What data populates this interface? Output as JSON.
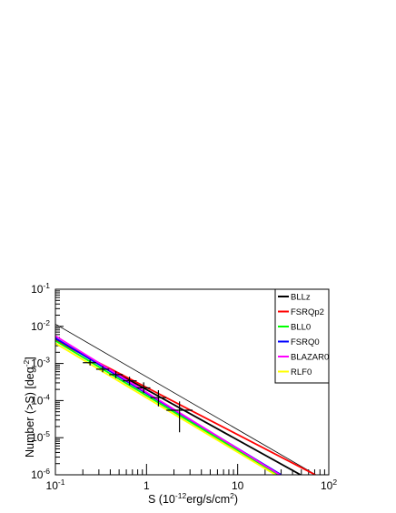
{
  "chart_data": {
    "type": "line",
    "xlabel_main": "S (10",
    "xlabel_sup": "-12",
    "xlabel_rest": "erg/s/cm",
    "xlabel_sup2": "2",
    "xlabel_end": ")",
    "ylabel_main": "Number (>S) [deg",
    "ylabel_sup": "-2",
    "ylabel_end": "]",
    "xscale": "log",
    "yscale": "log",
    "xlim": [
      0.1,
      100
    ],
    "ylim": [
      1e-06,
      0.1
    ],
    "x_major_ticks": [
      {
        "value": 0.1,
        "base": "10",
        "exp": "-1"
      },
      {
        "value": 1,
        "base": "1",
        "exp": ""
      },
      {
        "value": 10,
        "base": "10",
        "exp": ""
      },
      {
        "value": 100,
        "base": "10",
        "exp": "2"
      }
    ],
    "y_major_ticks": [
      {
        "value": 1e-06,
        "base": "10",
        "exp": "-6"
      },
      {
        "value": 1e-05,
        "base": "10",
        "exp": "-5"
      },
      {
        "value": 0.0001,
        "base": "10",
        "exp": "-4"
      },
      {
        "value": 0.001,
        "base": "10",
        "exp": "-3"
      },
      {
        "value": 0.01,
        "base": "10",
        "exp": "-2"
      },
      {
        "value": 0.1,
        "base": "10",
        "exp": "-1"
      }
    ],
    "legend_position": "top-right",
    "series": [
      {
        "name": "",
        "color": "#000000",
        "width": 0.8,
        "x": [
          0.1,
          72
        ],
        "y": [
          0.0115,
          1e-06
        ]
      },
      {
        "name": "BLLz",
        "color": "#000000",
        "width": 1.8,
        "x": [
          0.1,
          49
        ],
        "y": [
          0.0045,
          1e-06
        ]
      },
      {
        "name": "FSRQp2",
        "color": "#ff0000",
        "width": 1.8,
        "x": [
          0.1,
          71
        ],
        "y": [
          0.0042,
          1e-06
        ]
      },
      {
        "name": "BLL0",
        "color": "#00ff00",
        "width": 1.8,
        "x": [
          0.1,
          28
        ],
        "y": [
          0.0041,
          1e-06
        ]
      },
      {
        "name": "FSRQ0",
        "color": "#0000ff",
        "width": 1.8,
        "x": [
          0.1,
          30
        ],
        "y": [
          0.0048,
          1e-06
        ]
      },
      {
        "name": "BLAZAR0",
        "color": "#ff00ff",
        "width": 1.8,
        "x": [
          0.1,
          29
        ],
        "y": [
          0.0055,
          1e-06
        ]
      },
      {
        "name": "RLF0",
        "color": "#ffff00",
        "width": 1.8,
        "x": [
          0.1,
          26
        ],
        "y": [
          0.0035,
          1e-06
        ]
      }
    ],
    "data_points": [
      {
        "x": 0.24,
        "y": 0.00105,
        "xlo": 0.2,
        "xhi": 0.28,
        "ylo": 0.00088,
        "yhi": 0.00125
      },
      {
        "x": 0.33,
        "y": 0.0007,
        "xlo": 0.28,
        "xhi": 0.39,
        "ylo": 0.00058,
        "yhi": 0.00085
      },
      {
        "x": 0.46,
        "y": 0.0005,
        "xlo": 0.39,
        "xhi": 0.55,
        "ylo": 0.0004,
        "yhi": 0.00062
      },
      {
        "x": 0.65,
        "y": 0.00034,
        "xlo": 0.55,
        "xhi": 0.78,
        "ylo": 0.00026,
        "yhi": 0.00044
      },
      {
        "x": 0.93,
        "y": 0.00022,
        "xlo": 0.78,
        "xhi": 1.1,
        "ylo": 0.00016,
        "yhi": 0.00031
      },
      {
        "x": 1.35,
        "y": 0.00012,
        "xlo": 1.1,
        "xhi": 1.65,
        "ylo": 7e-05,
        "yhi": 0.00019
      },
      {
        "x": 2.3,
        "y": 5.5e-05,
        "xlo": 1.65,
        "xhi": 3.2,
        "ylo": 1.4e-05,
        "yhi": 9.5e-05
      }
    ]
  }
}
